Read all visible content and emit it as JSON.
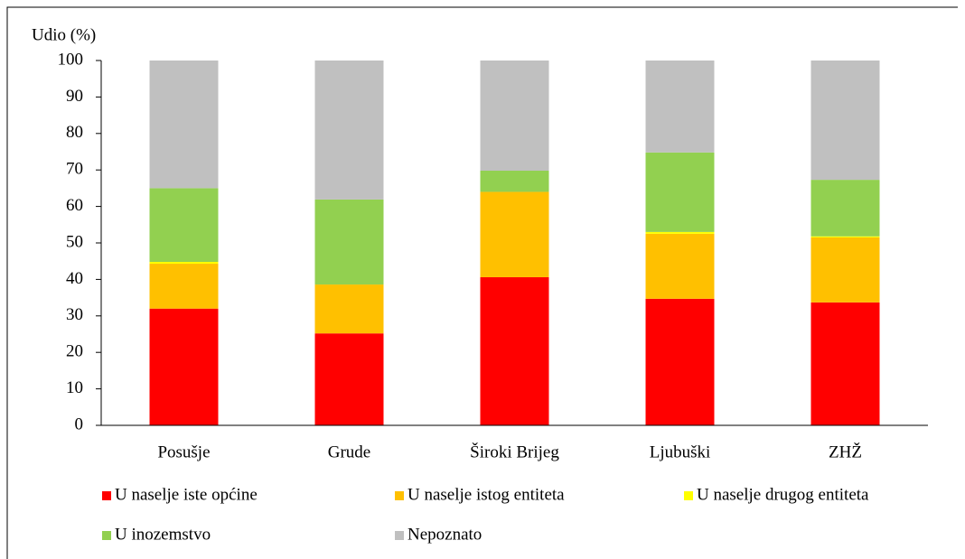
{
  "chart_data": {
    "type": "stacked_bar",
    "y_label": "Udio (%)",
    "categories": [
      "Posušje",
      "Grude",
      "Široki Brijeg",
      "Ljubuški",
      "ZHŽ"
    ],
    "series": [
      {
        "name": "U naselje iste općine",
        "color": "#ff0000",
        "values": [
          32,
          25.2,
          40.6,
          34.7,
          33.7
        ]
      },
      {
        "name": "U naselje istog entiteta",
        "color": "#ffc000",
        "values": [
          12.3,
          13.4,
          23.4,
          17.8,
          17.8
        ]
      },
      {
        "name": "U naselje drugog entiteta",
        "color": "#ffff00",
        "values": [
          0.5,
          0,
          0,
          0.5,
          0.3
        ]
      },
      {
        "name": "U inozemstvo",
        "color": "#92d050",
        "values": [
          20.2,
          23.3,
          5.8,
          21.8,
          15.5
        ]
      },
      {
        "name": "Nepoznato",
        "color": "#c0c0c0",
        "values": [
          35,
          38.1,
          30.2,
          25.2,
          32.7
        ]
      }
    ],
    "ylim": [
      0,
      100
    ],
    "yticks": [
      0,
      10,
      20,
      30,
      40,
      50,
      60,
      70,
      80,
      90,
      100
    ]
  }
}
